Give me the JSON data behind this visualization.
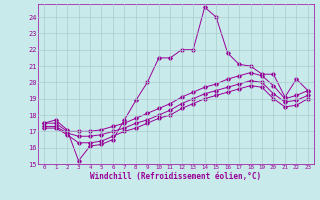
{
  "background_color": "#c8eaea",
  "grid_color": "#aaccaa",
  "line_color": "#990099",
  "xlim": [
    -0.5,
    23.5
  ],
  "ylim": [
    15,
    24.8
  ],
  "yticks": [
    15,
    16,
    17,
    18,
    19,
    20,
    21,
    22,
    23,
    24
  ],
  "xticks": [
    0,
    1,
    2,
    3,
    4,
    5,
    6,
    7,
    8,
    9,
    10,
    11,
    12,
    13,
    14,
    15,
    16,
    17,
    18,
    19,
    20,
    21,
    22,
    23
  ],
  "xlabel": "Windchill (Refroidissement éolien,°C)",
  "line1_x": [
    0,
    1,
    2,
    3,
    4,
    5,
    6,
    7,
    8,
    9,
    10,
    11,
    12,
    13,
    14,
    15,
    16,
    17,
    18,
    19,
    20,
    21,
    22,
    23
  ],
  "line1_y": [
    17.5,
    17.7,
    17.1,
    15.2,
    16.1,
    16.2,
    16.5,
    17.7,
    18.9,
    20.0,
    21.5,
    21.5,
    22.0,
    22.0,
    24.6,
    24.0,
    21.8,
    21.1,
    21.0,
    20.5,
    20.5,
    19.1,
    20.2,
    19.5
  ],
  "line2_x": [
    0,
    1,
    2,
    3,
    4,
    5,
    6,
    7,
    8,
    9,
    10,
    11,
    12,
    13,
    14,
    15,
    16,
    17,
    18,
    19,
    20,
    21,
    22,
    23
  ],
  "line2_y": [
    17.5,
    17.5,
    17.0,
    17.0,
    17.0,
    17.1,
    17.3,
    17.5,
    17.8,
    18.1,
    18.4,
    18.7,
    19.1,
    19.4,
    19.7,
    19.9,
    20.2,
    20.4,
    20.6,
    20.4,
    19.8,
    19.0,
    19.2,
    19.5
  ],
  "line3_x": [
    0,
    1,
    2,
    3,
    4,
    5,
    6,
    7,
    8,
    9,
    10,
    11,
    12,
    13,
    14,
    15,
    16,
    17,
    18,
    19,
    20,
    21,
    22,
    23
  ],
  "line3_y": [
    17.3,
    17.3,
    16.9,
    16.7,
    16.7,
    16.8,
    17.0,
    17.2,
    17.5,
    17.7,
    18.0,
    18.3,
    18.7,
    19.0,
    19.3,
    19.5,
    19.7,
    19.9,
    20.1,
    20.0,
    19.3,
    18.8,
    18.9,
    19.2
  ],
  "line4_x": [
    0,
    1,
    2,
    3,
    4,
    5,
    6,
    7,
    8,
    9,
    10,
    11,
    12,
    13,
    14,
    15,
    16,
    17,
    18,
    19,
    20,
    21,
    22,
    23
  ],
  "line4_y": [
    17.2,
    17.2,
    16.8,
    16.3,
    16.3,
    16.4,
    16.7,
    17.0,
    17.2,
    17.5,
    17.8,
    18.0,
    18.4,
    18.7,
    19.0,
    19.2,
    19.4,
    19.6,
    19.8,
    19.7,
    19.0,
    18.5,
    18.6,
    19.0
  ]
}
